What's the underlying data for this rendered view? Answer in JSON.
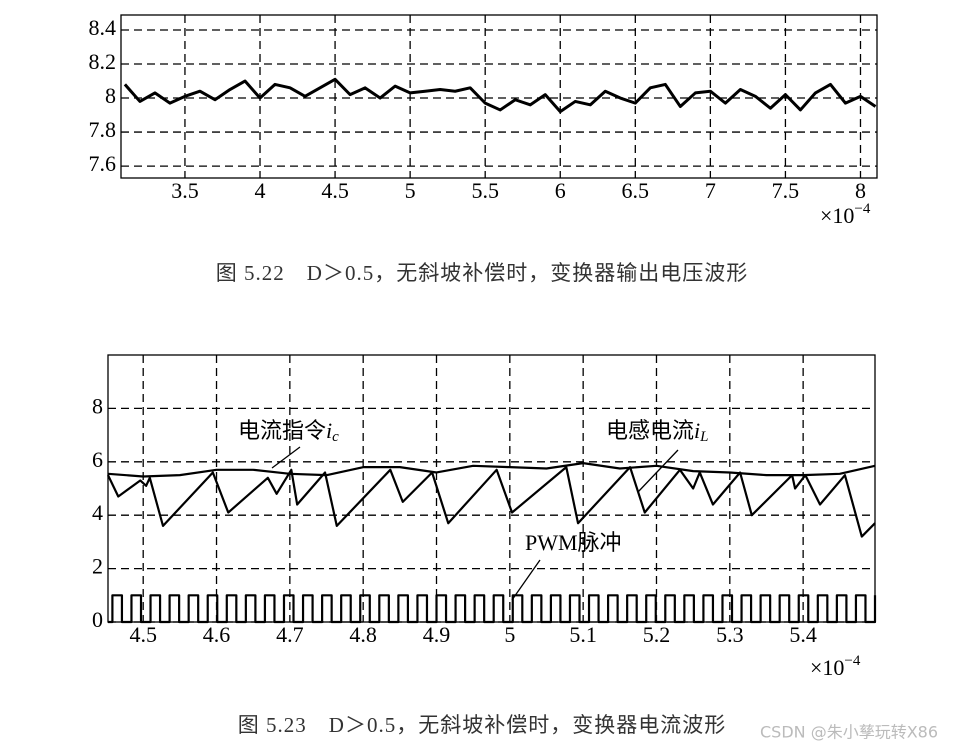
{
  "chart_data": [
    {
      "type": "line",
      "caption": "图 5.22　D＞0.5，无斜坡补偿时，变换器输出电压波形",
      "x_multiplier": {
        "base": "×10",
        "power": "−4"
      },
      "xlim": [
        3.074,
        8.11
      ],
      "ylim": [
        7.53,
        8.488
      ],
      "xticks": [
        3.5,
        4,
        4.5,
        5,
        5.5,
        6,
        6.5,
        7,
        7.5,
        8
      ],
      "yticks": [
        7.6,
        7.8,
        8,
        8.2,
        8.4
      ],
      "grid": true,
      "series": [
        {
          "color": "#000000",
          "x": [
            3.1,
            3.2,
            3.3,
            3.4,
            3.5,
            3.6,
            3.7,
            3.8,
            3.9,
            4.0,
            4.1,
            4.2,
            4.3,
            4.4,
            4.5,
            4.6,
            4.7,
            4.8,
            4.9,
            5.0,
            5.1,
            5.2,
            5.3,
            5.4,
            5.5,
            5.6,
            5.7,
            5.8,
            5.9,
            6.0,
            6.1,
            6.2,
            6.3,
            6.4,
            6.5,
            6.6,
            6.7,
            6.8,
            6.9,
            7.0,
            7.1,
            7.2,
            7.3,
            7.4,
            7.5,
            7.6,
            7.7,
            7.8,
            7.9,
            8.0,
            8.1
          ],
          "values": [
            8.08,
            7.98,
            8.03,
            7.97,
            8.01,
            8.04,
            7.99,
            8.05,
            8.1,
            8.0,
            8.08,
            8.06,
            8.01,
            8.06,
            8.11,
            8.02,
            8.06,
            8.0,
            8.07,
            8.03,
            8.04,
            8.05,
            8.04,
            8.06,
            7.97,
            7.93,
            7.99,
            7.96,
            8.02,
            7.92,
            7.98,
            7.96,
            8.04,
            8.0,
            7.97,
            8.06,
            8.08,
            7.95,
            8.03,
            8.04,
            7.97,
            8.05,
            8.01,
            7.94,
            8.02,
            7.93,
            8.03,
            8.08,
            7.97,
            8.01,
            7.95
          ]
        }
      ]
    },
    {
      "type": "line",
      "caption": "图 5.23　D＞0.5，无斜坡补偿时，变换器电流波形",
      "x_multiplier": {
        "base": "×10",
        "power": "−4"
      },
      "xlim": [
        4.452,
        5.498
      ],
      "ylim": [
        0,
        10
      ],
      "xticks": [
        4.5,
        4.6,
        4.7,
        4.8,
        4.9,
        5,
        5.1,
        5.2,
        5.3,
        5.4
      ],
      "yticks": [
        0,
        2,
        4,
        6,
        8
      ],
      "grid": true,
      "annotations": [
        {
          "text": "电流指令",
          "var": "i",
          "sub": "c"
        },
        {
          "text": "电感电流",
          "var": "i",
          "sub": "L"
        },
        {
          "text": "PWM脉冲"
        }
      ],
      "series": [
        {
          "color": "#000000",
          "x": [
            4.452,
            4.5,
            4.55,
            4.6,
            4.65,
            4.7,
            4.75,
            4.8,
            4.85,
            4.9,
            4.95,
            5.0,
            5.05,
            5.1,
            5.15,
            5.2,
            5.25,
            5.3,
            5.35,
            5.4,
            5.45,
            5.498
          ],
          "values": [
            5.55,
            5.45,
            5.5,
            5.7,
            5.7,
            5.55,
            5.5,
            5.8,
            5.8,
            5.6,
            5.85,
            5.8,
            5.75,
            5.95,
            5.75,
            5.85,
            5.65,
            5.6,
            5.5,
            5.5,
            5.55,
            5.85
          ]
        },
        {
          "color": "#000000",
          "x": [
            4.452,
            4.466,
            4.496,
            4.504,
            4.509,
            4.527,
            4.595,
            4.616,
            4.67,
            4.682,
            4.702,
            4.71,
            4.748,
            4.764,
            4.837,
            4.854,
            4.894,
            4.916,
            4.982,
            5.003,
            5.077,
            5.093,
            5.164,
            5.184,
            5.232,
            5.25,
            5.259,
            5.277,
            5.314,
            5.33,
            5.385,
            5.389,
            5.403,
            5.423,
            5.457,
            5.48,
            5.498
          ],
          "values": [
            5.5,
            4.7,
            5.3,
            5.1,
            5.4,
            3.6,
            5.6,
            4.1,
            5.4,
            4.8,
            5.7,
            4.4,
            5.6,
            3.6,
            5.7,
            4.5,
            5.6,
            3.7,
            5.7,
            4.1,
            5.8,
            3.7,
            5.8,
            4.1,
            5.7,
            5.0,
            5.6,
            4.4,
            5.6,
            4.0,
            5.5,
            5.0,
            5.5,
            4.4,
            5.5,
            3.2,
            3.7
          ]
        },
        {
          "color": "#000000",
          "step": true,
          "x": [
            4.452,
            4.458,
            4.471,
            4.484,
            4.497,
            4.51,
            4.523,
            4.536,
            4.549,
            4.562,
            4.575,
            4.588,
            4.601,
            4.614,
            4.627,
            4.64,
            4.653,
            4.666,
            4.679,
            4.692,
            4.705,
            4.718,
            4.731,
            4.744,
            4.757,
            4.77,
            4.783,
            4.796,
            4.809,
            4.822,
            4.835,
            4.848,
            4.861,
            4.874,
            4.887,
            4.9,
            4.913,
            4.926,
            4.939,
            4.952,
            4.965,
            4.978,
            4.991,
            5.004,
            5.017,
            5.03,
            5.043,
            5.056,
            5.069,
            5.082,
            5.095,
            5.108,
            5.121,
            5.134,
            5.147,
            5.16,
            5.173,
            5.186,
            5.199,
            5.212,
            5.225,
            5.238,
            5.251,
            5.264,
            5.277,
            5.29,
            5.303,
            5.316,
            5.329,
            5.342,
            5.355,
            5.368,
            5.381,
            5.394,
            5.407,
            5.42,
            5.433,
            5.446,
            5.459,
            5.472,
            5.485,
            5.498
          ],
          "values": [
            0,
            1,
            0,
            1,
            0,
            1,
            0,
            1,
            0,
            1,
            0,
            1,
            0,
            1,
            0,
            1,
            0,
            1,
            0,
            1,
            0,
            1,
            0,
            1,
            0,
            1,
            0,
            1,
            0,
            1,
            0,
            1,
            0,
            1,
            0,
            1,
            0,
            1,
            0,
            1,
            0,
            1,
            0,
            1,
            0,
            1,
            0,
            1,
            0,
            1,
            0,
            1,
            0,
            1,
            0,
            1,
            0,
            1,
            0,
            1,
            0,
            1,
            0,
            1,
            0,
            1,
            0,
            1,
            0,
            1,
            0,
            1,
            0,
            1,
            0,
            1,
            0,
            1,
            0,
            1,
            0,
            1
          ]
        }
      ]
    }
  ],
  "watermark": "CSDN @朱小孳玩转X86"
}
